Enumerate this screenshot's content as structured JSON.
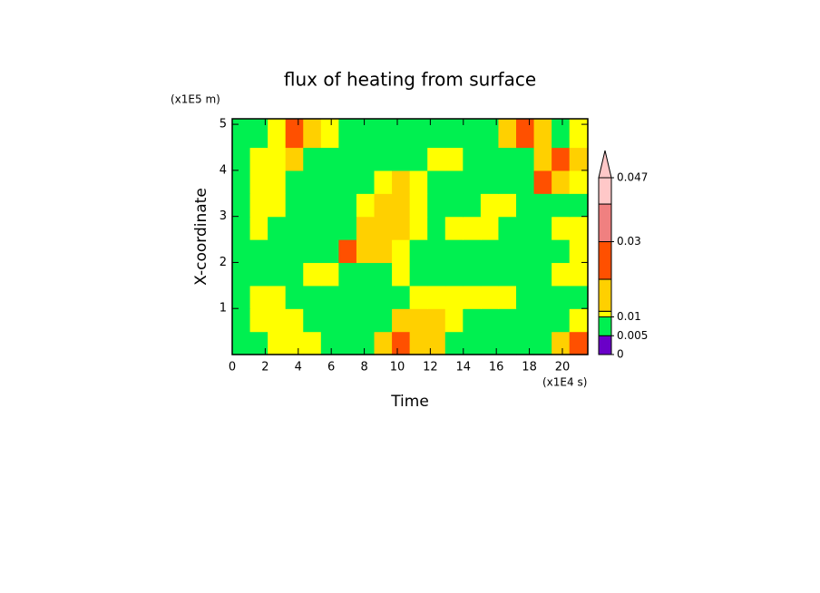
{
  "chart_data": {
    "type": "heatmap",
    "title": "flux of heating from surface",
    "x_label": "Time",
    "y_label": "X-coordinate",
    "x_unit": "(x1E4 s)",
    "y_unit": "(x1E5 m)",
    "xlim": [
      0,
      21.54
    ],
    "ylim": [
      0,
      5.12
    ],
    "xticks": [
      0,
      2,
      4,
      6,
      8,
      10,
      12,
      14,
      16,
      18,
      20
    ],
    "yticks": [
      1,
      2,
      3,
      4,
      5
    ],
    "x": [
      0.54,
      1.61,
      2.69,
      3.76,
      4.84,
      5.91,
      6.99,
      8.06,
      9.14,
      10.21,
      11.29,
      12.36,
      13.44,
      14.51,
      15.59,
      16.66,
      17.74,
      18.81,
      19.89,
      20.96
    ],
    "y": [
      0.25,
      0.75,
      1.25,
      1.75,
      2.25,
      2.75,
      3.25,
      3.75,
      4.25,
      4.75
    ],
    "z": [
      [
        0.007,
        0.007,
        0.0108,
        0.0108,
        0.0108,
        0.007,
        0.007,
        0.007,
        0.015,
        0.025,
        0.015,
        0.015,
        0.007,
        0.007,
        0.007,
        0.007,
        0.007,
        0.007,
        0.015,
        0.025
      ],
      [
        0.007,
        0.0108,
        0.0108,
        0.0108,
        0.007,
        0.007,
        0.007,
        0.007,
        0.007,
        0.015,
        0.015,
        0.015,
        0.0108,
        0.007,
        0.007,
        0.007,
        0.007,
        0.007,
        0.007,
        0.0108
      ],
      [
        0.007,
        0.0108,
        0.0108,
        0.007,
        0.007,
        0.007,
        0.007,
        0.007,
        0.007,
        0.007,
        0.0108,
        0.0108,
        0.0108,
        0.0108,
        0.0108,
        0.0108,
        0.007,
        0.007,
        0.007,
        0.007
      ],
      [
        0.007,
        0.007,
        0.007,
        0.007,
        0.0108,
        0.0108,
        0.007,
        0.007,
        0.007,
        0.0108,
        0.007,
        0.007,
        0.007,
        0.007,
        0.007,
        0.007,
        0.007,
        0.007,
        0.0108,
        0.0108
      ],
      [
        0.007,
        0.007,
        0.007,
        0.007,
        0.007,
        0.007,
        0.025,
        0.015,
        0.015,
        0.0108,
        0.007,
        0.007,
        0.007,
        0.007,
        0.007,
        0.007,
        0.007,
        0.007,
        0.007,
        0.0108
      ],
      [
        0.007,
        0.0108,
        0.007,
        0.007,
        0.007,
        0.007,
        0.007,
        0.015,
        0.015,
        0.015,
        0.0108,
        0.007,
        0.0108,
        0.0108,
        0.0108,
        0.007,
        0.007,
        0.007,
        0.0108,
        0.0108
      ],
      [
        0.007,
        0.0108,
        0.0108,
        0.007,
        0.007,
        0.007,
        0.007,
        0.0108,
        0.015,
        0.015,
        0.0108,
        0.007,
        0.007,
        0.007,
        0.0108,
        0.0108,
        0.007,
        0.007,
        0.007,
        0.007
      ],
      [
        0.007,
        0.0108,
        0.0108,
        0.007,
        0.007,
        0.007,
        0.007,
        0.007,
        0.0108,
        0.015,
        0.0108,
        0.007,
        0.007,
        0.007,
        0.007,
        0.007,
        0.007,
        0.025,
        0.015,
        0.0108
      ],
      [
        0.007,
        0.0108,
        0.0108,
        0.015,
        0.007,
        0.007,
        0.007,
        0.007,
        0.007,
        0.007,
        0.007,
        0.0108,
        0.0108,
        0.007,
        0.007,
        0.007,
        0.007,
        0.015,
        0.025,
        0.015
      ],
      [
        0.007,
        0.007,
        0.0108,
        0.025,
        0.015,
        0.0108,
        0.007,
        0.007,
        0.007,
        0.007,
        0.007,
        0.007,
        0.007,
        0.007,
        0.007,
        0.015,
        0.025,
        0.015,
        0.007,
        0.0108
      ]
    ],
    "levels": [
      0,
      0.005,
      0.01,
      0.0115,
      0.02,
      0.03,
      0.04,
      0.047
    ],
    "level_colors": [
      "#6a00c8",
      "#00f050",
      "#ffff00",
      "#ffd000",
      "#ff5000",
      "#f08080",
      "#ffc8c8"
    ],
    "colorbar_ticks": [
      0,
      0.005,
      0.01,
      0.03,
      0.047
    ]
  }
}
